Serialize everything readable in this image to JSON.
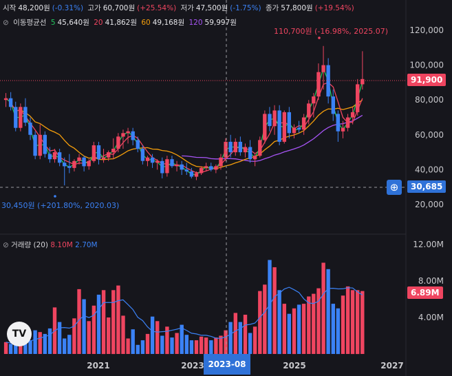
{
  "header": {
    "open_label": "시작",
    "open_value": "48,200원",
    "open_change": "(-0.31%)",
    "high_label": "고가",
    "high_value": "60,700원",
    "high_change": "(+25.54%)",
    "low_label": "저가",
    "low_value": "47,500원",
    "low_change": "(-1.75%)",
    "close_label": "종가",
    "close_value": "57,800원",
    "close_change": "(+19.54%)"
  },
  "ma_legend": {
    "title": "이동평균선",
    "items": [
      {
        "period": "5",
        "value": "45,640원",
        "color": "#22c55e"
      },
      {
        "period": "20",
        "value": "41,862원",
        "color": "#ef4560"
      },
      {
        "period": "60",
        "value": "49,168원",
        "color": "#f59e0b"
      },
      {
        "period": "120",
        "value": "59,997원",
        "color": "#a855f7"
      }
    ]
  },
  "volume_legend": {
    "title": "거래량 (20)",
    "value1": "8.10M",
    "value2": "2.70M"
  },
  "annotations": {
    "high": "110,700원 (-16.98%, 2025.07)",
    "low": "30,450원 (+201.80%, 2020.03)"
  },
  "price_tag": "91,900",
  "crosshair_price": "30,685",
  "volume_tag": "6.89M",
  "crosshair_date": "2023-08",
  "logo": "TV",
  "colors": {
    "up": "#ef4560",
    "down": "#3b82f6",
    "ma5": "#22c55e",
    "ma20": "#ef4560",
    "ma60": "#f59e0b",
    "ma120": "#a855f7",
    "volMa": "#3b82f6"
  },
  "chart_data": {
    "type": "candlestick",
    "price_axis": {
      "ticks": [
        "120,000",
        "100,000",
        "80,000",
        "60,000",
        "40,000",
        "20,000"
      ],
      "range": [
        15000,
        125000
      ]
    },
    "volume_axis": {
      "ticks": [
        "12.00M",
        "8.00M",
        "4.00M"
      ],
      "range": [
        0,
        13000000
      ]
    },
    "time_axis": {
      "ticks": [
        "2021",
        "2023",
        "2025",
        "2027"
      ]
    },
    "candles": [
      [
        80000,
        84000,
        76000,
        81000
      ],
      [
        81000,
        84500,
        74000,
        76000
      ],
      [
        76000,
        79000,
        62000,
        64000
      ],
      [
        64000,
        78000,
        62000,
        76000
      ],
      [
        76000,
        81000,
        65000,
        67000
      ],
      [
        67000,
        70000,
        57000,
        60000
      ],
      [
        60000,
        62000,
        46000,
        48000
      ],
      [
        48000,
        66000,
        46000,
        60000
      ],
      [
        60000,
        62000,
        47000,
        49000
      ],
      [
        49000,
        53000,
        44000,
        46000
      ],
      [
        46000,
        52000,
        44000,
        50000
      ],
      [
        50000,
        52000,
        42000,
        44000
      ],
      [
        44000,
        47000,
        31000,
        42000
      ],
      [
        42000,
        49000,
        38000,
        41000
      ],
      [
        41000,
        46000,
        39000,
        45000
      ],
      [
        45000,
        49000,
        43000,
        47000
      ],
      [
        47000,
        48000,
        39000,
        42000
      ],
      [
        42000,
        46000,
        40000,
        45000
      ],
      [
        45000,
        56000,
        44000,
        54000
      ],
      [
        54000,
        56000,
        43000,
        46000
      ],
      [
        46000,
        52000,
        44000,
        47000
      ],
      [
        47000,
        51000,
        45000,
        50000
      ],
      [
        50000,
        58000,
        46000,
        52000
      ],
      [
        52000,
        61000,
        50000,
        59000
      ],
      [
        59000,
        63000,
        52000,
        61000
      ],
      [
        61000,
        64000,
        55000,
        62000
      ],
      [
        62000,
        64000,
        54000,
        57000
      ],
      [
        57000,
        59000,
        50000,
        52000
      ],
      [
        52000,
        54000,
        43000,
        45000
      ],
      [
        45000,
        48000,
        42000,
        47000
      ],
      [
        47000,
        49000,
        41000,
        44000
      ],
      [
        44000,
        46000,
        40000,
        45000
      ],
      [
        45000,
        47000,
        35000,
        38000
      ],
      [
        38000,
        48000,
        36000,
        46000
      ],
      [
        46000,
        48000,
        41000,
        42000
      ],
      [
        42000,
        45000,
        39000,
        43000
      ],
      [
        43000,
        45000,
        37000,
        40000
      ],
      [
        40000,
        44000,
        37000,
        39000
      ],
      [
        39000,
        41000,
        35000,
        36000
      ],
      [
        36000,
        39000,
        34000,
        38000
      ],
      [
        38000,
        42000,
        37000,
        41000
      ],
      [
        41000,
        44000,
        39000,
        42000
      ],
      [
        42000,
        44000,
        39000,
        40000
      ],
      [
        40000,
        43000,
        38000,
        42000
      ],
      [
        42000,
        49000,
        40000,
        47000
      ],
      [
        47000,
        58000,
        45000,
        56000
      ],
      [
        56000,
        60000,
        47000,
        50000
      ],
      [
        50000,
        58000,
        48000,
        56000
      ],
      [
        56000,
        59000,
        48000,
        50000
      ],
      [
        50000,
        55000,
        47000,
        53000
      ],
      [
        53000,
        57000,
        44000,
        46000
      ],
      [
        46000,
        49000,
        42000,
        48000
      ],
      [
        48000,
        59000,
        47000,
        57000
      ],
      [
        57000,
        74000,
        55000,
        72000
      ],
      [
        72000,
        76000,
        62000,
        65000
      ],
      [
        65000,
        77000,
        60000,
        74000
      ],
      [
        74000,
        77000,
        54000,
        56000
      ],
      [
        56000,
        74000,
        55000,
        73000
      ],
      [
        73000,
        76000,
        58000,
        61000
      ],
      [
        61000,
        66000,
        58000,
        64000
      ],
      [
        64000,
        68000,
        61000,
        63000
      ],
      [
        63000,
        72000,
        60000,
        70000
      ],
      [
        70000,
        80000,
        66000,
        78000
      ],
      [
        78000,
        84000,
        70000,
        82000
      ],
      [
        82000,
        101000,
        80000,
        96000
      ],
      [
        96000,
        111000,
        86000,
        100000
      ],
      [
        100000,
        104000,
        78000,
        82000
      ],
      [
        82000,
        86000,
        68000,
        72000
      ],
      [
        72000,
        74000,
        56000,
        62000
      ],
      [
        62000,
        68000,
        58000,
        64000
      ],
      [
        64000,
        72000,
        62000,
        70000
      ],
      [
        70000,
        76000,
        66000,
        73000
      ],
      [
        73000,
        92000,
        71000,
        89000
      ],
      [
        89000,
        108000,
        86000,
        92000
      ]
    ],
    "volumes": [
      1.3,
      1.1,
      1.5,
      1.9,
      1.2,
      1.5,
      2.6,
      2.4,
      2.2,
      2.8,
      5.1,
      3.5,
      1.7,
      2.1,
      3.9,
      7.1,
      6.0,
      3.6,
      5.3,
      6.5,
      7.0,
      4.0,
      7.0,
      7.5,
      4.2,
      1.7,
      2.7,
      1.0,
      1.5,
      2.2,
      4.1,
      3.6,
      2.0,
      3.0,
      1.8,
      2.3,
      3.2,
      2.1,
      1.5,
      1.5,
      1.9,
      1.8,
      1.5,
      1.8,
      2.0,
      2.6,
      3.5,
      4.5,
      3.5,
      4.3,
      2.3,
      3.0,
      6.9,
      7.6,
      10.3,
      9.5,
      7.0,
      5.5,
      4.4,
      5.0,
      5.4,
      5.5,
      6.3,
      6.6,
      7.2,
      10.0,
      9.3,
      5.5,
      5.0,
      6.4,
      7.4,
      7.0,
      7.0,
      6.9
    ]
  }
}
